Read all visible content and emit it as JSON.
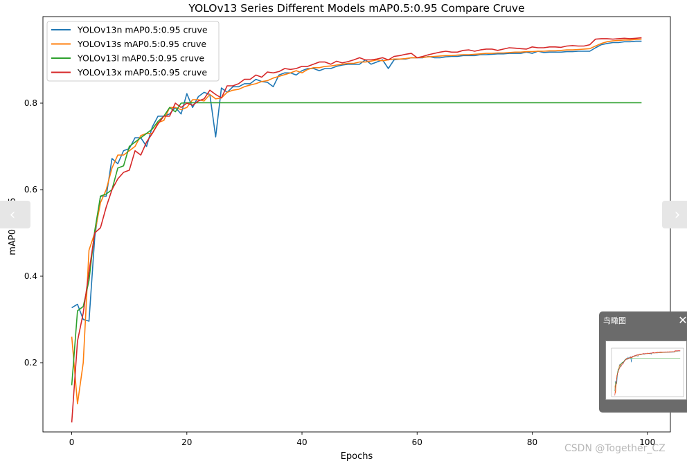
{
  "chart_data": {
    "type": "line",
    "title": "YOLOv13 Series Different Models mAP0.5:0.95 Compare Cruve",
    "xlabel": "Epochs",
    "ylabel": "mAP0.5:0.95",
    "xlim": [
      -5,
      104
    ],
    "ylim": [
      0.04,
      1.0
    ],
    "xticks": [
      0,
      20,
      40,
      60,
      80,
      100
    ],
    "yticks": [
      0.2,
      0.4,
      0.6,
      0.8
    ],
    "grid": false,
    "legend_position": "upper-left",
    "x": [
      0,
      1,
      2,
      3,
      4,
      5,
      6,
      7,
      8,
      9,
      10,
      11,
      12,
      13,
      14,
      15,
      16,
      17,
      18,
      19,
      20,
      21,
      22,
      23,
      24,
      25,
      26,
      27,
      28,
      29,
      30,
      31,
      32,
      33,
      34,
      35,
      36,
      37,
      38,
      39,
      40,
      41,
      42,
      43,
      44,
      45,
      46,
      47,
      48,
      49,
      50,
      51,
      52,
      53,
      54,
      55,
      56,
      57,
      58,
      59,
      60,
      61,
      62,
      63,
      64,
      65,
      66,
      67,
      68,
      69,
      70,
      71,
      72,
      73,
      74,
      75,
      76,
      77,
      78,
      79,
      80,
      81,
      82,
      83,
      84,
      85,
      86,
      87,
      88,
      89,
      90,
      91,
      92,
      93,
      94,
      95,
      96,
      97,
      98,
      99
    ],
    "series": [
      {
        "name": "YOLOv13n mAP0.5:0.95 cruve",
        "color": "#1f77b4",
        "values": [
          0.327,
          0.335,
          0.3,
          0.296,
          0.49,
          0.585,
          0.585,
          0.672,
          0.66,
          0.69,
          0.695,
          0.72,
          0.72,
          0.7,
          0.745,
          0.77,
          0.77,
          0.775,
          0.79,
          0.775,
          0.822,
          0.79,
          0.815,
          0.825,
          0.82,
          0.722,
          0.835,
          0.825,
          0.838,
          0.838,
          0.845,
          0.845,
          0.855,
          0.85,
          0.848,
          0.838,
          0.865,
          0.87,
          0.87,
          0.865,
          0.875,
          0.88,
          0.88,
          0.875,
          0.88,
          0.88,
          0.885,
          0.888,
          0.89,
          0.89,
          0.89,
          0.9,
          0.89,
          0.895,
          0.9,
          0.88,
          0.9,
          0.902,
          0.902,
          0.905,
          0.905,
          0.905,
          0.908,
          0.905,
          0.905,
          0.907,
          0.908,
          0.908,
          0.91,
          0.91,
          0.91,
          0.912,
          0.912,
          0.913,
          0.914,
          0.914,
          0.915,
          0.915,
          0.915,
          0.918,
          0.915,
          0.92,
          0.917,
          0.918,
          0.918,
          0.918,
          0.919,
          0.919,
          0.92,
          0.92,
          0.92,
          0.928,
          0.935,
          0.938,
          0.94,
          0.94,
          0.942,
          0.942,
          0.943,
          0.943
        ]
      },
      {
        "name": "YOLOv13s mAP0.5:0.95 cruve",
        "color": "#ff7f0e",
        "values": [
          0.26,
          0.105,
          0.2,
          0.46,
          0.5,
          0.57,
          0.6,
          0.65,
          0.68,
          0.68,
          0.69,
          0.7,
          0.725,
          0.73,
          0.73,
          0.755,
          0.76,
          0.79,
          0.79,
          0.785,
          0.79,
          0.808,
          0.808,
          0.805,
          0.82,
          0.81,
          0.812,
          0.825,
          0.83,
          0.832,
          0.838,
          0.842,
          0.845,
          0.85,
          0.852,
          0.858,
          0.862,
          0.866,
          0.87,
          0.875,
          0.87,
          0.878,
          0.882,
          0.882,
          0.885,
          0.886,
          0.888,
          0.89,
          0.892,
          0.892,
          0.895,
          0.895,
          0.897,
          0.9,
          0.898,
          0.9,
          0.902,
          0.902,
          0.903,
          0.905,
          0.905,
          0.906,
          0.907,
          0.908,
          0.909,
          0.91,
          0.91,
          0.911,
          0.912,
          0.912,
          0.913,
          0.914,
          0.915,
          0.915,
          0.916,
          0.916,
          0.917,
          0.918,
          0.918,
          0.919,
          0.919,
          0.92,
          0.92,
          0.921,
          0.921,
          0.922,
          0.923,
          0.923,
          0.924,
          0.925,
          0.926,
          0.932,
          0.938,
          0.942,
          0.944,
          0.945,
          0.946,
          0.946,
          0.947,
          0.948
        ]
      },
      {
        "name": "YOLOv13l mAP0.5:0.95 cruve",
        "color": "#2ca02c",
        "values": [
          0.148,
          0.32,
          0.33,
          0.39,
          0.505,
          0.585,
          0.59,
          0.6,
          0.65,
          0.655,
          0.7,
          0.71,
          0.72,
          0.73,
          0.74,
          0.758,
          0.77,
          0.79,
          0.78,
          0.8,
          0.801,
          0.801,
          0.801,
          0.801,
          0.801,
          0.801,
          0.801,
          0.801,
          0.801,
          0.801,
          0.801,
          0.801,
          0.801,
          0.801,
          0.801,
          0.801,
          0.801,
          0.801,
          0.801,
          0.801,
          0.801,
          0.801,
          0.801,
          0.801,
          0.801,
          0.801,
          0.801,
          0.801,
          0.801,
          0.801,
          0.801,
          0.801,
          0.801,
          0.801,
          0.801,
          0.801,
          0.801,
          0.801,
          0.801,
          0.801,
          0.801,
          0.801,
          0.801,
          0.801,
          0.801,
          0.801,
          0.801,
          0.801,
          0.801,
          0.801,
          0.801,
          0.801,
          0.801,
          0.801,
          0.801,
          0.801,
          0.801,
          0.801,
          0.801,
          0.801,
          0.801,
          0.801,
          0.801,
          0.801,
          0.801,
          0.801,
          0.801,
          0.801,
          0.801,
          0.801,
          0.801,
          0.801,
          0.801,
          0.801,
          0.801,
          0.801,
          0.801,
          0.801,
          0.801,
          0.801
        ]
      },
      {
        "name": "YOLOv13x mAP0.5:0.95 cruve",
        "color": "#d62728",
        "values": [
          0.062,
          0.25,
          0.315,
          0.41,
          0.5,
          0.512,
          0.56,
          0.6,
          0.625,
          0.64,
          0.645,
          0.69,
          0.68,
          0.71,
          0.73,
          0.752,
          0.77,
          0.77,
          0.8,
          0.79,
          0.8,
          0.795,
          0.805,
          0.81,
          0.83,
          0.82,
          0.812,
          0.84,
          0.84,
          0.845,
          0.855,
          0.855,
          0.865,
          0.86,
          0.872,
          0.87,
          0.873,
          0.88,
          0.878,
          0.88,
          0.885,
          0.885,
          0.89,
          0.895,
          0.895,
          0.89,
          0.897,
          0.893,
          0.896,
          0.9,
          0.905,
          0.9,
          0.9,
          0.902,
          0.905,
          0.9,
          0.908,
          0.91,
          0.913,
          0.915,
          0.905,
          0.908,
          0.912,
          0.915,
          0.918,
          0.92,
          0.918,
          0.918,
          0.922,
          0.923,
          0.92,
          0.923,
          0.925,
          0.925,
          0.922,
          0.925,
          0.928,
          0.927,
          0.926,
          0.925,
          0.93,
          0.928,
          0.928,
          0.93,
          0.93,
          0.929,
          0.932,
          0.933,
          0.932,
          0.932,
          0.935,
          0.948,
          0.949,
          0.949,
          0.948,
          0.949,
          0.95,
          0.949,
          0.95,
          0.951
        ]
      }
    ]
  },
  "ui": {
    "prev_glyph": "‹",
    "next_glyph": "›",
    "birdseye_title": "鸟瞰图",
    "close_glyph": "✕",
    "watermark": "CSDN @Together_CZ"
  }
}
